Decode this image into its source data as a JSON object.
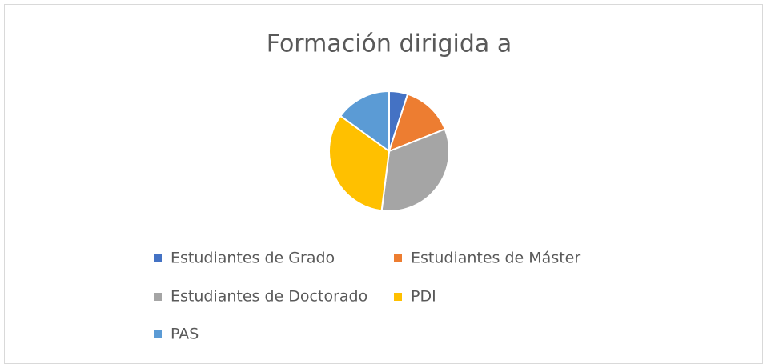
{
  "chart_data": {
    "type": "pie",
    "title": "Formación dirigida a",
    "categories": [
      "Estudiantes de Grado",
      "Estudiantes de Máster",
      "Estudiantes de Doctorado",
      "PDI",
      "PAS"
    ],
    "values": [
      5,
      14,
      33,
      33,
      15
    ],
    "colors": [
      "#4472c4",
      "#ed7d31",
      "#a5a5a5",
      "#ffc000",
      "#5b9bd5"
    ],
    "legend": "bottom"
  }
}
